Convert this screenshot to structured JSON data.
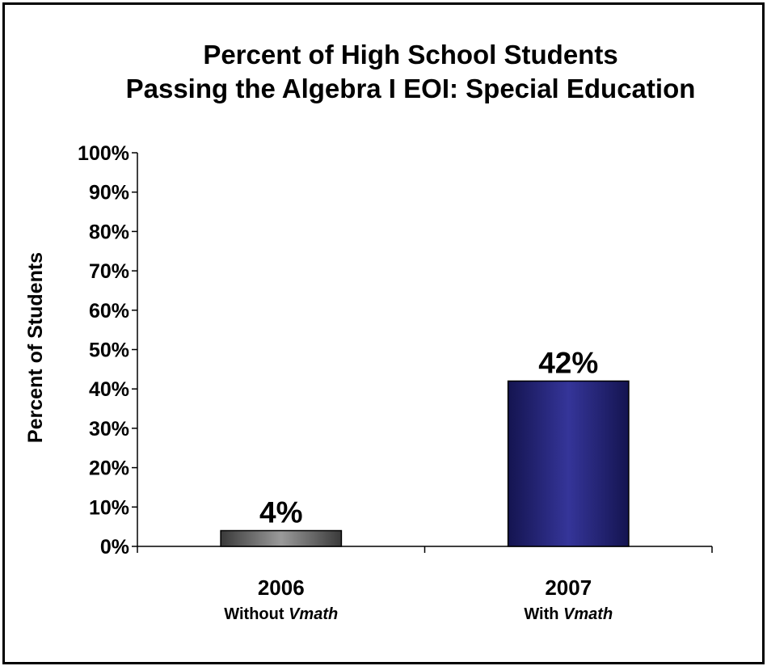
{
  "chart_data": {
    "type": "bar",
    "title": [
      "Percent of High School Students",
      "Passing the Algebra I EOI: Special Education"
    ],
    "ylabel": "Percent of Students",
    "xlabel": "",
    "ylim": [
      0,
      100
    ],
    "yticks": [
      "0%",
      "10%",
      "20%",
      "30%",
      "40%",
      "50%",
      "60%",
      "70%",
      "80%",
      "90%",
      "100%"
    ],
    "categories": [
      {
        "year": "2006",
        "sub_prefix": "Without ",
        "sub_emph": "Vmath"
      },
      {
        "year": "2007",
        "sub_prefix": "With ",
        "sub_emph": "Vmath"
      }
    ],
    "values": [
      4,
      42
    ],
    "data_labels": [
      "4%",
      "42%"
    ],
    "bar_colors": [
      "#6e6e6e",
      "#2e2e8c"
    ],
    "grid": false,
    "legend": "none"
  }
}
